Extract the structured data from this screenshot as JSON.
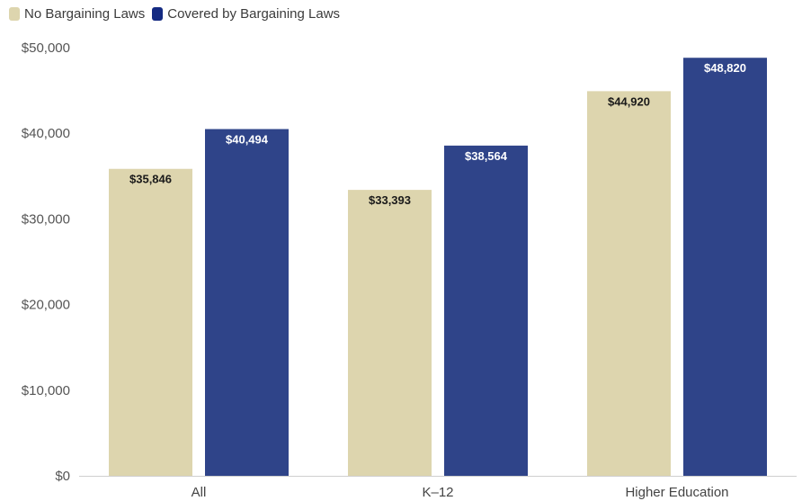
{
  "chart_data": {
    "type": "bar",
    "categories": [
      "All",
      "K–12",
      "Higher Education"
    ],
    "series": [
      {
        "name": "No Bargaining Laws",
        "values": [
          35846,
          33393,
          44920
        ],
        "labels": [
          "$35,846",
          "$33,393",
          "$44,920"
        ],
        "color": "#ddd5ae",
        "label_color": "#1a1a1a"
      },
      {
        "name": "Covered by Bargaining Laws",
        "values": [
          40494,
          38564,
          48820
        ],
        "labels": [
          "$40,494",
          "$38,564",
          "$48,820"
        ],
        "color": "#2f4489",
        "label_color": "#ffffff"
      }
    ],
    "ylim": [
      0,
      50000
    ],
    "yticks": [
      0,
      10000,
      20000,
      30000,
      40000,
      50000
    ],
    "ytick_labels": [
      "$0",
      "$10,000",
      "$20,000",
      "$30,000",
      "$40,000",
      "$50,000"
    ],
    "legend_colors": [
      "#ddd5ae",
      "#142a82"
    ],
    "legend_position": "top-left",
    "grid": false
  }
}
